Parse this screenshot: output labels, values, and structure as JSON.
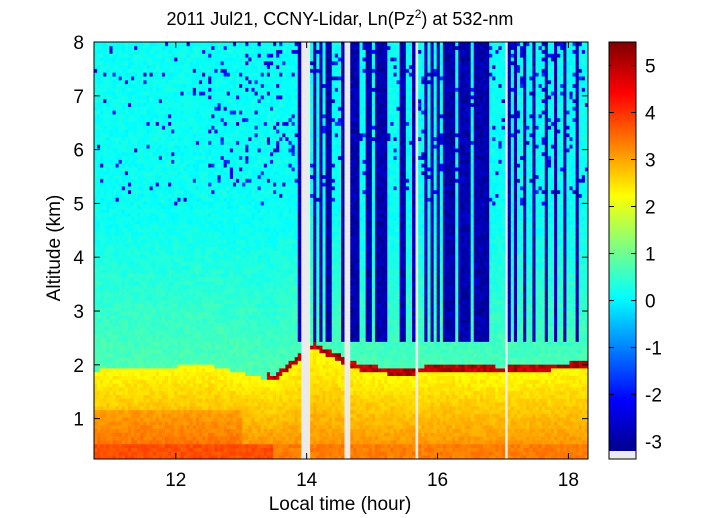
{
  "chart_data": {
    "type": "heatmap",
    "title": {
      "prefix": "2011 Jul21, CCNY-Lidar, Ln(Pz",
      "superscript": "2",
      "suffix": ") at 532-nm"
    },
    "xlabel": "Local time (hour)",
    "ylabel": "Altitude (km)",
    "xlim": [
      10.75,
      18.3
    ],
    "ylim": [
      0.25,
      8
    ],
    "x_ticks": [
      12,
      14,
      16,
      18
    ],
    "y_ticks": [
      1,
      2,
      3,
      4,
      5,
      6,
      7,
      8
    ],
    "colorbar": {
      "range": [
        -3.2,
        5.5
      ],
      "ticks": [
        -3,
        -2,
        -1,
        0,
        1,
        2,
        3,
        4,
        5
      ],
      "colormap": "jet",
      "nodata_color": "#ebebeb"
    },
    "data_gaps_hours": [
      [
        13.9,
        14.05
      ],
      [
        14.57,
        14.65
      ],
      [
        15.65,
        15.72
      ],
      [
        17.03,
        17.07
      ]
    ],
    "boundary_layer_top_km": [
      {
        "t": 10.75,
        "z": 1.9
      },
      {
        "t": 11.5,
        "z": 1.95
      },
      {
        "t": 12.5,
        "z": 2.0
      },
      {
        "t": 13.5,
        "z": 1.7
      },
      {
        "t": 14.1,
        "z": 2.3
      },
      {
        "t": 14.8,
        "z": 1.9
      },
      {
        "t": 15.5,
        "z": 1.8
      },
      {
        "t": 16.0,
        "z": 1.9
      },
      {
        "t": 17.0,
        "z": 1.85
      },
      {
        "t": 18.3,
        "z": 1.95
      }
    ]
  }
}
